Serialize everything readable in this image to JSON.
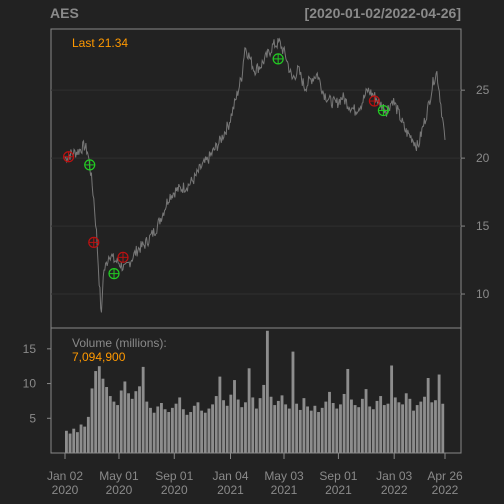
{
  "header": {
    "symbol": "AES",
    "date_range": "[2020-01-02/2022-04-26]"
  },
  "chart_data": [
    {
      "type": "line",
      "panel": "price",
      "annotation": "Last 21.34",
      "last_value": 21.34,
      "ylim": [
        7.5,
        29.5
      ],
      "y_ticks": [
        10,
        15,
        20,
        25
      ],
      "grid": true,
      "x_tick_labels": [
        [
          "Jan 02",
          "2020"
        ],
        [
          "May 01",
          "2020"
        ],
        [
          "Sep 01",
          "2020"
        ],
        [
          "Jan 04",
          "2021"
        ],
        [
          "May 03",
          "2021"
        ],
        [
          "Sep 01",
          "2021"
        ],
        [
          "Jan 03",
          "2022"
        ],
        [
          "Apr 26",
          "2022"
        ]
      ],
      "series": [
        {
          "role": "close",
          "color": "#777777",
          "points": [
            [
              "2020-01-02",
              20.0
            ],
            [
              "2020-01-15",
              20.3
            ],
            [
              "2020-01-31",
              20.5
            ],
            [
              "2020-02-14",
              20.9
            ],
            [
              "2020-02-21",
              20.5
            ],
            [
              "2020-02-28",
              19.0
            ],
            [
              "2020-03-06",
              17.0
            ],
            [
              "2020-03-12",
              14.5
            ],
            [
              "2020-03-18",
              11.0
            ],
            [
              "2020-03-23",
              8.3
            ],
            [
              "2020-03-27",
              11.5
            ],
            [
              "2020-04-03",
              12.2
            ],
            [
              "2020-04-10",
              13.0
            ],
            [
              "2020-04-20",
              12.5
            ],
            [
              "2020-05-01",
              12.3
            ],
            [
              "2020-05-15",
              11.8
            ],
            [
              "2020-05-29",
              12.6
            ],
            [
              "2020-06-12",
              13.3
            ],
            [
              "2020-06-26",
              13.6
            ],
            [
              "2020-07-10",
              14.2
            ],
            [
              "2020-07-24",
              14.9
            ],
            [
              "2020-08-07",
              16.0
            ],
            [
              "2020-08-21",
              17.2
            ],
            [
              "2020-09-04",
              17.6
            ],
            [
              "2020-09-18",
              17.8
            ],
            [
              "2020-10-02",
              18.0
            ],
            [
              "2020-10-16",
              18.5
            ],
            [
              "2020-10-30",
              19.3
            ],
            [
              "2020-11-13",
              19.8
            ],
            [
              "2020-11-27",
              20.5
            ],
            [
              "2020-12-11",
              21.2
            ],
            [
              "2020-12-31",
              22.5
            ],
            [
              "2021-01-15",
              24.2
            ],
            [
              "2021-01-29",
              26.0
            ],
            [
              "2021-02-05",
              28.2
            ],
            [
              "2021-02-12",
              27.7
            ],
            [
              "2021-02-26",
              26.5
            ],
            [
              "2021-03-12",
              26.8
            ],
            [
              "2021-03-26",
              27.5
            ],
            [
              "2021-04-09",
              28.3
            ],
            [
              "2021-04-23",
              28.5
            ],
            [
              "2021-05-07",
              27.5
            ],
            [
              "2021-05-21",
              25.8
            ],
            [
              "2021-06-04",
              26.5
            ],
            [
              "2021-06-18",
              25.2
            ],
            [
              "2021-07-02",
              25.8
            ],
            [
              "2021-07-16",
              26.2
            ],
            [
              "2021-07-30",
              24.8
            ],
            [
              "2021-08-13",
              24.2
            ],
            [
              "2021-08-27",
              24.0
            ],
            [
              "2021-09-10",
              24.5
            ],
            [
              "2021-09-24",
              23.9
            ],
            [
              "2021-10-08",
              23.5
            ],
            [
              "2021-10-22",
              24.0
            ],
            [
              "2021-11-05",
              25.0
            ],
            [
              "2021-11-19",
              24.6
            ],
            [
              "2021-12-03",
              24.0
            ],
            [
              "2021-12-17",
              23.5
            ],
            [
              "2021-12-31",
              24.3
            ],
            [
              "2022-01-14",
              23.2
            ],
            [
              "2022-01-28",
              22.0
            ],
            [
              "2022-02-11",
              21.5
            ],
            [
              "2022-02-25",
              20.8
            ],
            [
              "2022-03-04",
              21.8
            ],
            [
              "2022-03-18",
              23.5
            ],
            [
              "2022-04-01",
              25.8
            ],
            [
              "2022-04-08",
              26.3
            ],
            [
              "2022-04-15",
              24.5
            ],
            [
              "2022-04-26",
              21.34
            ]
          ]
        }
      ],
      "markers": [
        {
          "kind": "buy",
          "color": "#22cc22",
          "date": "2020-02-26",
          "value": 19.5
        },
        {
          "kind": "sell",
          "color": "#bb1111",
          "date": "2020-01-10",
          "value": 20.1
        },
        {
          "kind": "sell",
          "color": "#bb1111",
          "date": "2020-03-06",
          "value": 13.8
        },
        {
          "kind": "buy",
          "color": "#22cc22",
          "date": "2020-04-20",
          "value": 11.5
        },
        {
          "kind": "sell",
          "color": "#bb1111",
          "date": "2020-05-10",
          "value": 12.7
        },
        {
          "kind": "buy",
          "color": "#22cc22",
          "date": "2021-04-20",
          "value": 27.3
        },
        {
          "kind": "sell",
          "color": "#bb1111",
          "date": "2021-11-20",
          "value": 24.2
        },
        {
          "kind": "buy",
          "color": "#22cc22",
          "date": "2021-12-10",
          "value": 23.5
        }
      ]
    },
    {
      "type": "bar",
      "panel": "volume",
      "title": "Volume (millions):",
      "last_value_label": "7,094,900",
      "ylim": [
        0,
        18
      ],
      "y_ticks": [
        5,
        10,
        15
      ],
      "color": "#8d8d8d",
      "values": [
        3.2,
        2.8,
        3.5,
        3.0,
        4.1,
        3.8,
        5.2,
        9.3,
        11.8,
        12.5,
        10.7,
        9.5,
        8.2,
        7.4,
        6.9,
        9.0,
        10.3,
        8.6,
        7.8,
        8.9,
        9.6,
        12.4,
        7.4,
        6.5,
        5.8,
        6.7,
        7.2,
        6.3,
        5.9,
        6.5,
        7.1,
        8.0,
        6.3,
        5.5,
        5.9,
        6.8,
        7.3,
        6.1,
        5.8,
        6.4,
        7.0,
        8.2,
        11.0,
        7.6,
        6.8,
        8.4,
        10.5,
        7.7,
        6.6,
        7.3,
        12.2,
        8.0,
        6.4,
        7.9,
        9.8,
        17.6,
        8.1,
        6.9,
        7.5,
        8.3,
        7.0,
        6.4,
        14.6,
        7.1,
        6.2,
        7.9,
        6.7,
        6.1,
        6.8,
        5.9,
        6.5,
        7.4,
        8.8,
        7.2,
        6.4,
        7.0,
        8.5,
        12.1,
        7.7,
        6.9,
        6.6,
        7.8,
        9.2,
        6.7,
        6.3,
        7.5,
        8.2,
        6.9,
        7.1,
        12.6,
        8.0,
        7.3,
        7.0,
        8.6,
        7.8,
        6.1,
        6.9,
        7.4,
        8.1,
        10.8,
        7.3,
        7.6,
        11.3,
        7.09
      ]
    }
  ]
}
